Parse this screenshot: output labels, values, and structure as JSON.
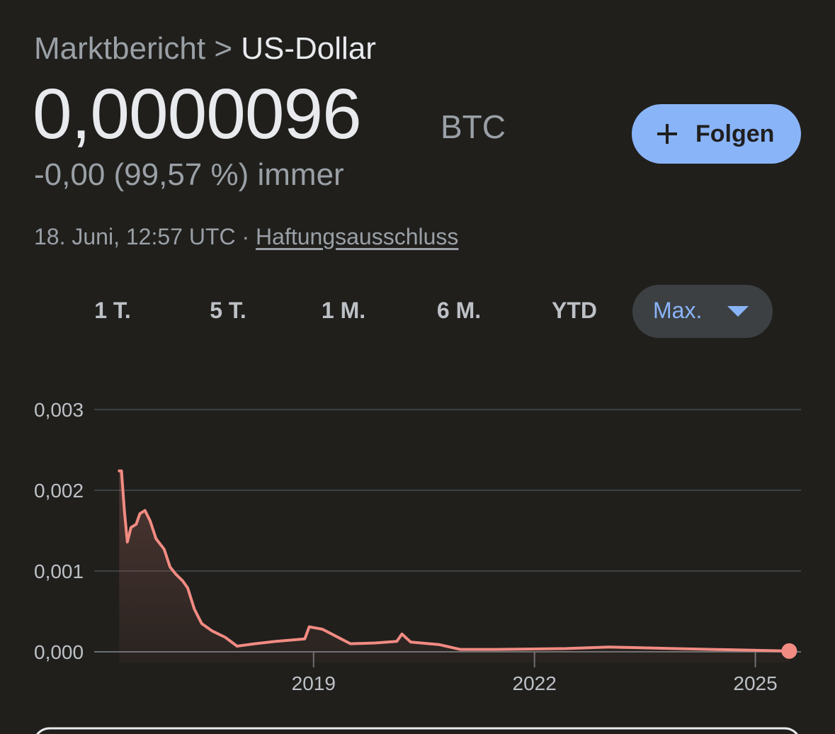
{
  "header": {
    "breadcrumb": [
      "Marktbericht",
      "US-Dollar"
    ],
    "separator": ">"
  },
  "price": {
    "value": "0,0000096",
    "unit": "BTC"
  },
  "change": "-0,00 (99,57 %) immer",
  "timestamp": "18. Juni, 12:57 UTC",
  "dot": "·",
  "disclaimer": "Haftungsausschluss",
  "follow_button": "Folgen",
  "ranges": [
    "1 T.",
    "5 T.",
    "1 M.",
    "6 M.",
    "YTD",
    "Max."
  ],
  "selected_range": 5,
  "chart_data": {
    "type": "line",
    "color": "#f28b82",
    "x": [
      2016.36,
      2016.39,
      2016.43,
      2016.47,
      2016.52,
      2016.59,
      2016.64,
      2016.71,
      2016.78,
      2016.86,
      2016.97,
      2017.05,
      2017.13,
      2017.22,
      2017.29,
      2017.38,
      2017.48,
      2017.62,
      2017.8,
      2017.96,
      2018.2,
      2018.49,
      2018.88,
      2018.94,
      2019.12,
      2019.31,
      2019.5,
      2019.84,
      2020.13,
      2020.2,
      2020.32,
      2020.7,
      2020.99,
      2021.47,
      2022.43,
      2023.01,
      2023.88,
      2025.46
    ],
    "values": [
      0.00224,
      0.00224,
      0.00175,
      0.00136,
      0.00154,
      0.00158,
      0.00171,
      0.00175,
      0.00162,
      0.0014,
      0.00127,
      0.00105,
      0.00096,
      0.00088,
      0.00079,
      0.00053,
      0.00035,
      0.00026,
      0.00018,
      7e-05,
      0.0001,
      0.00013,
      0.00016,
      0.00031,
      0.00028,
      0.00019,
      0.0001,
      0.00011,
      0.00013,
      0.00022,
      0.00012,
      9e-05,
      3e-05,
      3e-05,
      4e-05,
      6e-05,
      4e-05,
      9.6e-06
    ],
    "xlim": [
      2016.02,
      2025.62
    ],
    "xticks": [
      2019,
      2022,
      2025
    ],
    "ylim": [
      0,
      0.003
    ],
    "yticks": [
      {
        "value": 0,
        "label": "0,000"
      },
      {
        "value": 0.001,
        "label": "0,001"
      },
      {
        "value": 0.002,
        "label": "0,002"
      },
      {
        "value": 0.003,
        "label": "0,003"
      }
    ],
    "grid": true
  }
}
